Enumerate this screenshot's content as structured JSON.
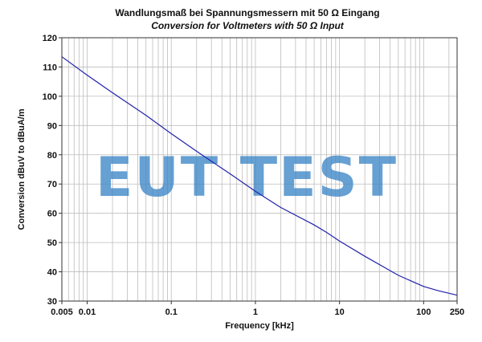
{
  "chart_data": {
    "type": "line",
    "title": "Wandlungsmaß bei Spannungsmessern mit 50 Ω Eingang",
    "subtitle": "Conversion for Voltmeters with 50 Ω Input",
    "xlabel": "Frequency [kHz]",
    "ylabel": "Conversion dBuV to dBuA/m",
    "x_scale": "log",
    "xlim": [
      0.005,
      250
    ],
    "ylim": [
      30,
      120
    ],
    "grid": true,
    "x_tick_labels": [
      "0.005",
      "0.01",
      "0.1",
      "1",
      "10",
      "100",
      "250"
    ],
    "x_tick_values": [
      0.005,
      0.01,
      0.1,
      1,
      10,
      100,
      250
    ],
    "y_tick_values": [
      30,
      40,
      50,
      60,
      70,
      80,
      90,
      100,
      110,
      120
    ],
    "line_color": "#2222aa",
    "series": [
      {
        "x": [
          0.005,
          0.01,
          0.02,
          0.05,
          0.1,
          0.2,
          0.5,
          1,
          2,
          5,
          7,
          10,
          20,
          50,
          100,
          150,
          250
        ],
        "values": [
          113.5,
          107.2,
          101.2,
          93.5,
          87.2,
          81.2,
          73.5,
          67.5,
          62,
          56,
          53.5,
          50.5,
          45.3,
          38.8,
          35,
          33.5,
          32
        ]
      }
    ]
  },
  "watermark": "EUT TEST",
  "colors": {
    "watermark": "#3d86c6",
    "grid": "#bdbdbd",
    "axis": "#333333"
  }
}
